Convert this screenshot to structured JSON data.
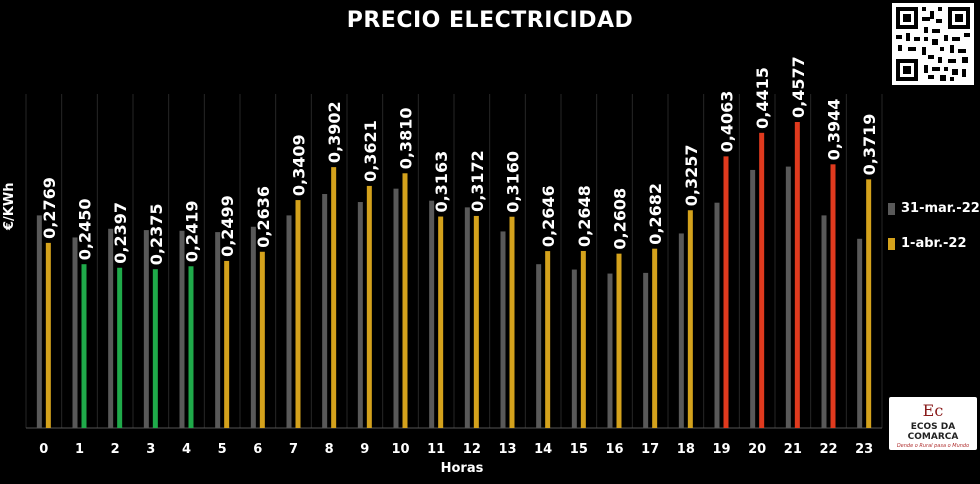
{
  "chart_data": {
    "type": "bar",
    "title": "PRECIO ELECTRICIDAD",
    "xlabel": "Horas",
    "ylabel": "€/KWh",
    "categories": [
      "0",
      "1",
      "2",
      "3",
      "4",
      "5",
      "6",
      "7",
      "8",
      "9",
      "10",
      "11",
      "12",
      "13",
      "14",
      "15",
      "16",
      "17",
      "18",
      "19",
      "20",
      "21",
      "22",
      "23"
    ],
    "ylim": [
      0,
      0.4577
    ],
    "series": [
      {
        "name": "31-mar.-22",
        "color": "#595959",
        "values": [
          0.318,
          0.285,
          0.298,
          0.296,
          0.295,
          0.293,
          0.301,
          0.318,
          0.35,
          0.338,
          0.358,
          0.34,
          0.33,
          0.294,
          0.245,
          0.237,
          0.231,
          0.232,
          0.291,
          0.337,
          0.386,
          0.391,
          0.318,
          0.283
        ]
      },
      {
        "name": "1-abr.-22",
        "color": "#d4a21c",
        "values": [
          0.2769,
          0.245,
          0.2397,
          0.2375,
          0.2419,
          0.2499,
          0.2636,
          0.3409,
          0.3902,
          0.3621,
          0.381,
          0.3163,
          0.3172,
          0.316,
          0.2646,
          0.2648,
          0.2608,
          0.2682,
          0.3257,
          0.4063,
          0.4415,
          0.4577,
          0.3944,
          0.3719
        ]
      }
    ],
    "data_labels": [
      "0,2769",
      "0,2450",
      "0,2397",
      "0,2375",
      "0,2419",
      "0,2499",
      "0,2636",
      "0,3409",
      "0,3902",
      "0,3621",
      "0,3810",
      "0,3163",
      "0,3172",
      "0,3160",
      "0,2646",
      "0,2648",
      "0,2608",
      "0,2682",
      "0,3257",
      "0,4063",
      "0,4415",
      "0,4577",
      "0,3944",
      "0,3719"
    ],
    "highlight_colors": [
      "#d4a21c",
      "#1faa4a",
      "#1faa4a",
      "#1faa4a",
      "#1faa4a",
      "#d4a21c",
      "#d4a21c",
      "#d4a21c",
      "#d4a21c",
      "#d4a21c",
      "#d4a21c",
      "#d4a21c",
      "#d4a21c",
      "#d4a21c",
      "#d4a21c",
      "#d4a21c",
      "#d4a21c",
      "#d4a21c",
      "#d4a21c",
      "#e03a1e",
      "#e03a1e",
      "#e03a1e",
      "#e03a1e",
      "#d4a21c"
    ],
    "grid": "vertical",
    "legend_position": "right"
  },
  "logo": {
    "mark": "Ec",
    "name": "ECOS DA COMARCA",
    "tagline": "Dende o Rural pasa o Mundo"
  }
}
